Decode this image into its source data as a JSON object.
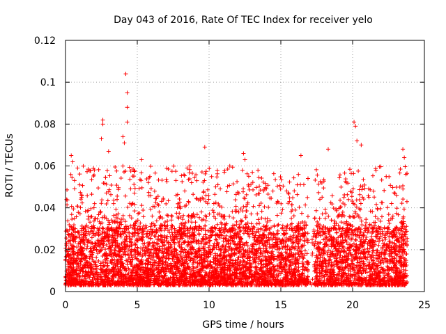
{
  "chart_data": {
    "type": "scatter",
    "title": "Day 043 of 2016, Rate Of TEC Index for receiver yelo",
    "xlabel": "GPS time / hours",
    "ylabel": "ROTI / TECUs",
    "xlim": [
      0,
      25
    ],
    "ylim": [
      0,
      0.12
    ],
    "xticks": [
      0,
      5,
      10,
      15,
      20,
      25
    ],
    "yticks": [
      0,
      0.02,
      0.04,
      0.06,
      0.08,
      0.1,
      0.12
    ],
    "xtick_labels": [
      "0",
      "5",
      "10",
      "15",
      "20",
      "25"
    ],
    "ytick_labels": [
      "0",
      "0.02",
      "0.04",
      "0.06",
      "0.08",
      "0.1",
      "0.12"
    ],
    "grid": true,
    "marker": "+",
    "color": "#ff0000",
    "x_data_range": [
      0,
      23.8
    ],
    "series": [
      {
        "name": "ROTI",
        "notable_points": [
          {
            "x": 4.2,
            "y": 0.104
          },
          {
            "x": 4.3,
            "y": 0.095
          },
          {
            "x": 4.3,
            "y": 0.088
          },
          {
            "x": 4.3,
            "y": 0.081
          },
          {
            "x": 2.6,
            "y": 0.082
          },
          {
            "x": 2.6,
            "y": 0.08
          },
          {
            "x": 2.5,
            "y": 0.073
          },
          {
            "x": 4.0,
            "y": 0.074
          },
          {
            "x": 4.1,
            "y": 0.071
          },
          {
            "x": 20.1,
            "y": 0.081
          },
          {
            "x": 20.2,
            "y": 0.079
          },
          {
            "x": 20.3,
            "y": 0.072
          },
          {
            "x": 20.6,
            "y": 0.07
          },
          {
            "x": 9.7,
            "y": 0.069
          },
          {
            "x": 18.3,
            "y": 0.068
          },
          {
            "x": 23.5,
            "y": 0.068
          },
          {
            "x": 0.4,
            "y": 0.065
          },
          {
            "x": 0.5,
            "y": 0.062
          },
          {
            "x": 12.4,
            "y": 0.066
          },
          {
            "x": 12.5,
            "y": 0.063
          },
          {
            "x": 16.4,
            "y": 0.065
          },
          {
            "x": 5.3,
            "y": 0.063
          },
          {
            "x": 3.0,
            "y": 0.067
          },
          {
            "x": 23.6,
            "y": 0.064
          }
        ],
        "baseline_range": [
          0.003,
          0.03
        ],
        "typical_upper_range": [
          0.03,
          0.06
        ]
      }
    ]
  }
}
